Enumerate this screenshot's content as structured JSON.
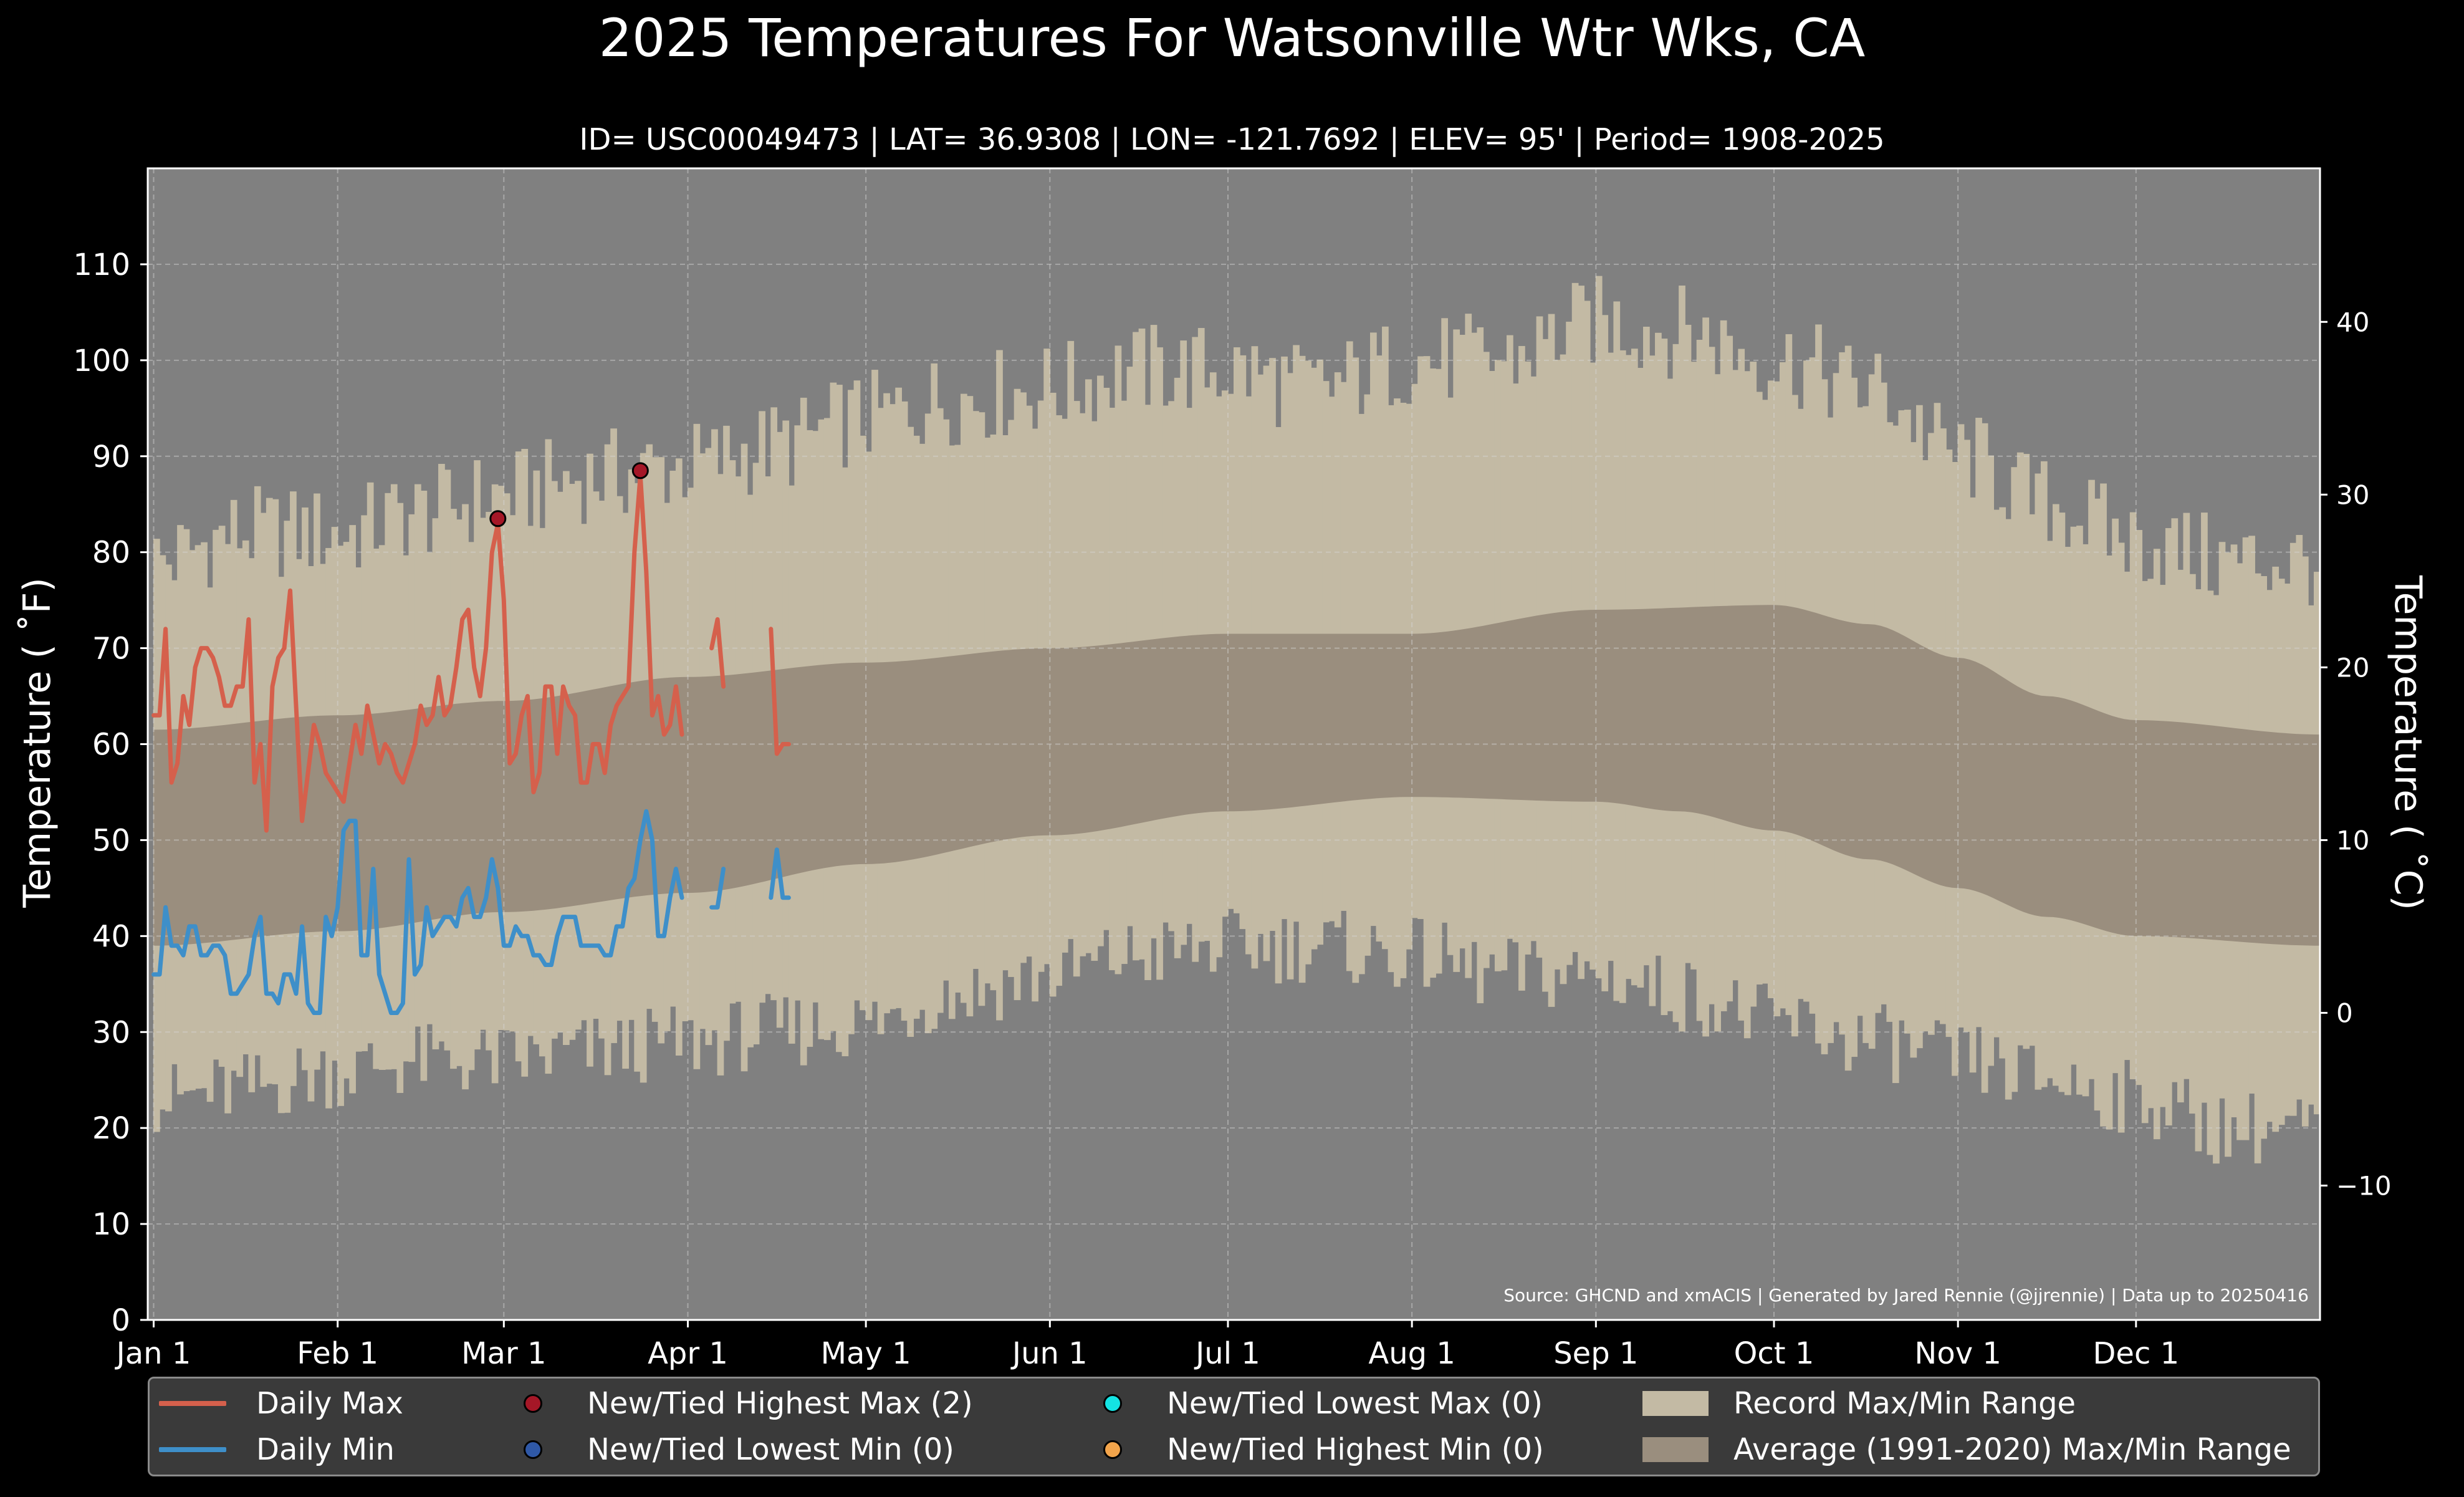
{
  "chart_data": {
    "type": "line",
    "title": "2025 Temperatures For Watsonville Wtr Wks, CA",
    "subtitle": "ID= USC00049473 | LAT= 36.9308 | LON= -121.7692 | ELEV= 95' | Period= 1908-2025",
    "ylabel_left": "Temperature ($^\\circ$F)",
    "ylabel_left_display": "Temperature ( ˚F)",
    "ylabel_right": "Temperature ( ˚C)",
    "ylim_f": [
      0,
      120
    ],
    "yticks_f": [
      0,
      10,
      20,
      30,
      40,
      50,
      60,
      70,
      80,
      90,
      100,
      110
    ],
    "yticks_c": [
      -10,
      0,
      10,
      20,
      30,
      40
    ],
    "xlim_day": [
      0,
      366
    ],
    "month_ticks": [
      {
        "label": "Jan 1",
        "day": 1
      },
      {
        "label": "Feb 1",
        "day": 32
      },
      {
        "label": "Mar 1",
        "day": 60
      },
      {
        "label": "Apr 1",
        "day": 91
      },
      {
        "label": "May 1",
        "day": 121
      },
      {
        "label": "Jun 1",
        "day": 152
      },
      {
        "label": "Jul 1",
        "day": 182
      },
      {
        "label": "Aug 1",
        "day": 213
      },
      {
        "label": "Sep 1",
        "day": 244
      },
      {
        "label": "Oct 1",
        "day": 274
      },
      {
        "label": "Nov 1",
        "day": 305
      },
      {
        "label": "Dec 1",
        "day": 335
      }
    ],
    "grid": true,
    "source_note": "Source: GHCND and xmACIS | Generated by Jared Rennie (@jjrennie) | Data up to 20250416",
    "record_max_anchors": [
      [
        1,
        79
      ],
      [
        15,
        82
      ],
      [
        32,
        82
      ],
      [
        45,
        84
      ],
      [
        60,
        86
      ],
      [
        75,
        88
      ],
      [
        91,
        89
      ],
      [
        105,
        91
      ],
      [
        121,
        94
      ],
      [
        135,
        96
      ],
      [
        152,
        97
      ],
      [
        166,
        99
      ],
      [
        182,
        99
      ],
      [
        196,
        97
      ],
      [
        213,
        100
      ],
      [
        227,
        100
      ],
      [
        244,
        104
      ],
      [
        258,
        103
      ],
      [
        274,
        100
      ],
      [
        290,
        97
      ],
      [
        305,
        90
      ],
      [
        320,
        85
      ],
      [
        335,
        81
      ],
      [
        350,
        79
      ],
      [
        366,
        79
      ]
    ],
    "record_min_anchors": [
      [
        1,
        23
      ],
      [
        15,
        24
      ],
      [
        32,
        26
      ],
      [
        45,
        27
      ],
      [
        60,
        27
      ],
      [
        75,
        28
      ],
      [
        91,
        29
      ],
      [
        105,
        30
      ],
      [
        121,
        31
      ],
      [
        135,
        34
      ],
      [
        152,
        36
      ],
      [
        166,
        38
      ],
      [
        182,
        39
      ],
      [
        196,
        39
      ],
      [
        213,
        38
      ],
      [
        227,
        36
      ],
      [
        244,
        36
      ],
      [
        258,
        34
      ],
      [
        274,
        31
      ],
      [
        290,
        29
      ],
      [
        305,
        27
      ],
      [
        320,
        25
      ],
      [
        335,
        23
      ],
      [
        350,
        20
      ],
      [
        366,
        20
      ]
    ],
    "avg_max_anchors": [
      [
        1,
        61.5
      ],
      [
        32,
        63
      ],
      [
        60,
        64.5
      ],
      [
        91,
        67
      ],
      [
        121,
        68.5
      ],
      [
        152,
        70
      ],
      [
        182,
        71.5
      ],
      [
        213,
        71.5
      ],
      [
        244,
        74
      ],
      [
        274,
        74.5
      ],
      [
        290,
        72.5
      ],
      [
        305,
        69
      ],
      [
        320,
        65
      ],
      [
        335,
        62.5
      ],
      [
        366,
        61
      ]
    ],
    "avg_min_anchors": [
      [
        1,
        39
      ],
      [
        32,
        40.5
      ],
      [
        60,
        42.5
      ],
      [
        91,
        44.5
      ],
      [
        121,
        47.5
      ],
      [
        152,
        50.5
      ],
      [
        182,
        53
      ],
      [
        213,
        54.5
      ],
      [
        244,
        54
      ],
      [
        258,
        53
      ],
      [
        274,
        51
      ],
      [
        290,
        48
      ],
      [
        305,
        45
      ],
      [
        320,
        42
      ],
      [
        335,
        40
      ],
      [
        366,
        39
      ]
    ],
    "series": [
      {
        "name": "Daily Max",
        "color": "#d5604c",
        "values": [
          63,
          63,
          72,
          56,
          58,
          65,
          62,
          68,
          70,
          70,
          69,
          67,
          64,
          64,
          66,
          66,
          73,
          56,
          60,
          51,
          66,
          69,
          70,
          76,
          64,
          52,
          57,
          62,
          60,
          57,
          56,
          55,
          54,
          58,
          62,
          59,
          64,
          61,
          58,
          60,
          59,
          57,
          56,
          58,
          60,
          64,
          62,
          63,
          67,
          63,
          64,
          68,
          73,
          74,
          68,
          65,
          70,
          80,
          83,
          75,
          58,
          59,
          63,
          65,
          55,
          57,
          66,
          66,
          59,
          66,
          64,
          63,
          56,
          56,
          60,
          60,
          57,
          62,
          64,
          65,
          66,
          80,
          88,
          78,
          63,
          65,
          61,
          62,
          66,
          61,
          null,
          null,
          null,
          null,
          70,
          73,
          66,
          null,
          null,
          null,
          null,
          null,
          null,
          null,
          72,
          59,
          60,
          60
        ]
      },
      {
        "name": "Daily Min",
        "color": "#3e8fc9",
        "values": [
          36,
          36,
          43,
          39,
          39,
          38,
          41,
          41,
          38,
          38,
          39,
          39,
          38,
          34,
          34,
          35,
          36,
          40,
          42,
          34,
          34,
          33,
          36,
          36,
          34,
          41,
          33,
          32,
          32,
          42,
          40,
          43,
          51,
          52,
          52,
          38,
          38,
          47,
          36,
          34,
          32,
          32,
          33,
          48,
          36,
          37,
          43,
          40,
          41,
          42,
          42,
          41,
          44,
          45,
          42,
          42,
          44,
          48,
          45,
          39,
          39,
          41,
          40,
          40,
          38,
          38,
          37,
          37,
          40,
          42,
          42,
          42,
          39,
          39,
          39,
          39,
          38,
          38,
          41,
          41,
          45,
          46,
          50,
          53,
          50,
          40,
          40,
          44,
          47,
          44,
          null,
          null,
          null,
          null,
          43,
          43,
          47,
          null,
          null,
          null,
          null,
          null,
          null,
          null,
          44,
          49,
          44,
          44
        ]
      }
    ],
    "records": [
      {
        "name": "New/Tied Highest Max (2)",
        "color": "#a51727",
        "points": [
          [
            59,
            83.5
          ],
          [
            83,
            88.5
          ]
        ]
      },
      {
        "name": "New/Tied Lowest Min (0)",
        "color": "#2f58a6",
        "points": []
      },
      {
        "name": "New/Tied Lowest Max (0)",
        "color": "#14e3e3",
        "points": []
      },
      {
        "name": "New/Tied Highest Min (0)",
        "color": "#f2a44b",
        "points": []
      }
    ],
    "bands": [
      {
        "name": "Record Max/Min Range",
        "color": "#c3baa4"
      },
      {
        "name": "Average (1991-2020) Max/Min Range",
        "color": "#9a8e7e"
      }
    ],
    "plot_background": "#808080",
    "legend_position": "bottom"
  }
}
